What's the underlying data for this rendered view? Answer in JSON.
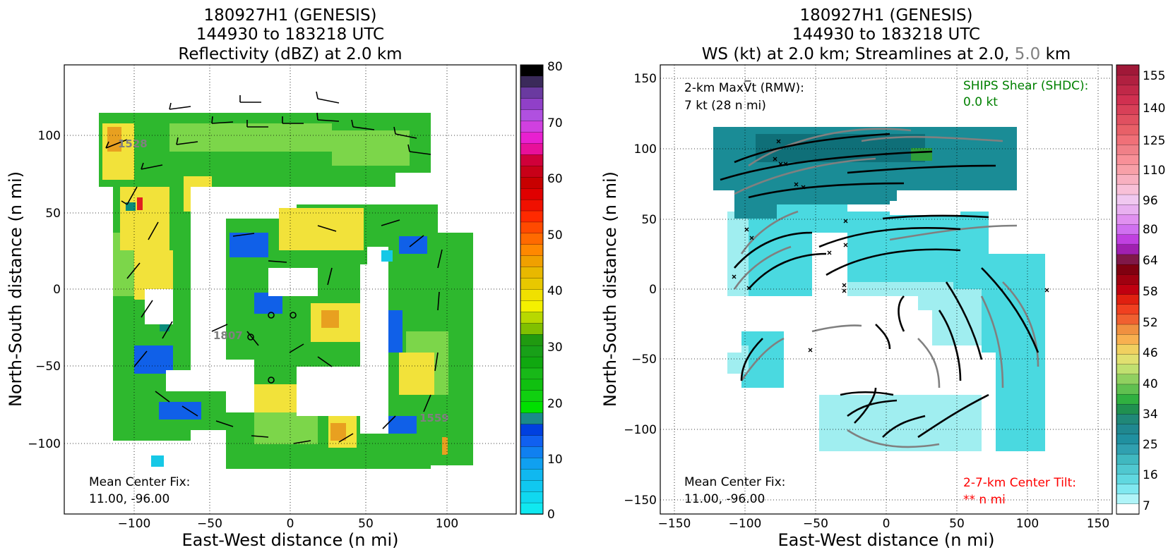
{
  "left_panel": {
    "title_lines": [
      "180927H1 (GENESIS)",
      "144930 to 183218 UTC",
      "Reflectivity (dBZ) at 2.0 km"
    ],
    "xlabel": "East-West distance (n mi)",
    "ylabel": "North-South distance (n mi)",
    "x_ticks": [
      "−100",
      "−50",
      "0",
      "50",
      "100"
    ],
    "y_ticks": [
      "100",
      "50",
      "0",
      "−50",
      "−100"
    ],
    "center_fix_label": "Mean Center Fix:",
    "center_fix_value": "11.00, -96.00",
    "colorbar_ticks": [
      "80",
      "70",
      "60",
      "50",
      "40",
      "30",
      "20",
      "10",
      "0"
    ],
    "annotations": [
      "1528",
      "1807",
      "1559"
    ]
  },
  "right_panel": {
    "title_line1": "180927H1 (GENESIS)",
    "title_line2": "144930 to 183218 UTC",
    "title_line3_a": "WS (kt) at 2.0 km; Streamlines at 2.0,",
    "title_line3_b": "5.0",
    "title_line3_c": "km",
    "xlabel": "East-West distance (n mi)",
    "ylabel": "North-South distance (n mi)",
    "x_ticks": [
      "−150",
      "−100",
      "−50",
      "0",
      "50",
      "100",
      "150"
    ],
    "y_ticks": [
      "150",
      "100",
      "50",
      "0",
      "−50",
      "−100",
      "−150"
    ],
    "maxvt_line1": "2-km MaxV̅t (RMW):",
    "maxvt_line2": "7 kt (28 n mi)",
    "ships_line1": "SHIPS Shear (SHDC):",
    "ships_line2": "0.0 kt",
    "center_fix_label": "Mean Center Fix:",
    "center_fix_value": "11.00, -96.00",
    "tilt_line1": "2-7-km Center Tilt:",
    "tilt_line2": "** n mi",
    "colorbar_ticks": [
      "155",
      "140",
      "125",
      "110",
      "96",
      "80",
      "64",
      "58",
      "52",
      "46",
      "40",
      "34",
      "25",
      "16",
      "7"
    ]
  },
  "colors": {
    "ships": "#008000",
    "tilt": "#ff0000",
    "streamline_2km": "#000000",
    "streamline_5km": "#808080"
  },
  "chart_data": [
    {
      "type": "heatmap",
      "title": "180927H1 (GENESIS) 144930 to 183218 UTC Reflectivity (dBZ) at 2.0 km",
      "xlabel": "East-West distance (n mi)",
      "ylabel": "North-South distance (n mi)",
      "xlim": [
        -145,
        145
      ],
      "ylim": [
        -145,
        145
      ],
      "colorbar": {
        "min": 0,
        "max": 80,
        "step": 2.5
      },
      "grid": true
    },
    {
      "type": "heatmap",
      "title": "180927H1 (GENESIS) 144930 to 183218 UTC WS (kt) at 2.0 km; Streamlines at 2.0, 5.0 km",
      "xlabel": "East-West distance (n mi)",
      "ylabel": "North-South distance (n mi)",
      "xlim": [
        -160,
        160
      ],
      "ylim": [
        -160,
        160
      ],
      "colorbar": {
        "min": 7,
        "max": 160
      },
      "grid": true
    }
  ]
}
